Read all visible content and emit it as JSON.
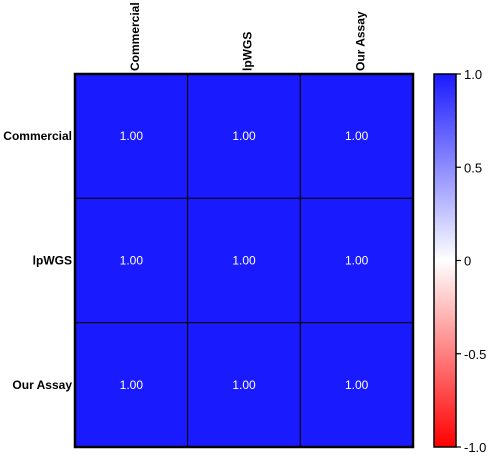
{
  "chart_data": {
    "type": "heatmap",
    "title": "",
    "row_labels": [
      "Commercial",
      "lpWGS",
      "Our Assay"
    ],
    "column_labels": [
      "Commercial",
      "lpWGS",
      "Our Assay"
    ],
    "values": [
      [
        1.0,
        1.0,
        1.0
      ],
      [
        1.0,
        1.0,
        1.0
      ],
      [
        1.0,
        1.0,
        1.0
      ]
    ],
    "value_format_decimals": 2,
    "colorbar": {
      "min": -1.0,
      "max": 1.0,
      "ticks": [
        1.0,
        0.5,
        0,
        -0.5,
        -1.0
      ],
      "tick_labels": [
        "1.0",
        "0.5",
        "0",
        "-0.5",
        "-1.0"
      ],
      "colors": {
        "high": "#1a1aff",
        "mid": "#ffffff",
        "low": "#ff0000"
      }
    },
    "cell_color": "#1a1aff",
    "grid_color": "#000000",
    "legend_position": "right"
  }
}
